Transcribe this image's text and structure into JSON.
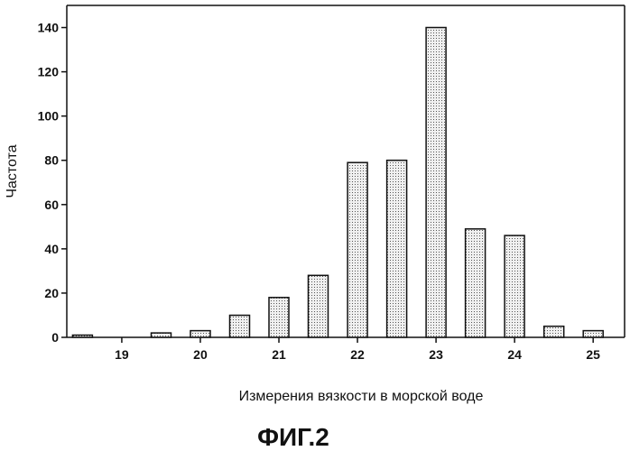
{
  "chart_data": {
    "type": "bar",
    "x": [
      18.5,
      19.5,
      20,
      20.5,
      21,
      21.5,
      22,
      22.5,
      23,
      23.5,
      24,
      24.5,
      25
    ],
    "values": [
      1,
      2,
      3,
      10,
      18,
      28,
      79,
      80,
      140,
      49,
      46,
      5,
      3
    ],
    "xticks": [
      "19",
      "20",
      "21",
      "22",
      "23",
      "24",
      "25"
    ],
    "xtick_values": [
      19,
      20,
      21,
      22,
      23,
      24,
      25
    ],
    "yticks": [
      "0",
      "20",
      "40",
      "60",
      "80",
      "100",
      "120",
      "140"
    ],
    "xlabel": "Измерения вязкости в морской воде",
    "ylabel": "Частота",
    "xlim": [
      18.3,
      25.4
    ],
    "ylim": [
      0,
      150
    ],
    "grid": false,
    "bar_fill": "#dcdcdc",
    "bar_stroke": "#111111"
  },
  "figure_label": "ФИГ.2"
}
